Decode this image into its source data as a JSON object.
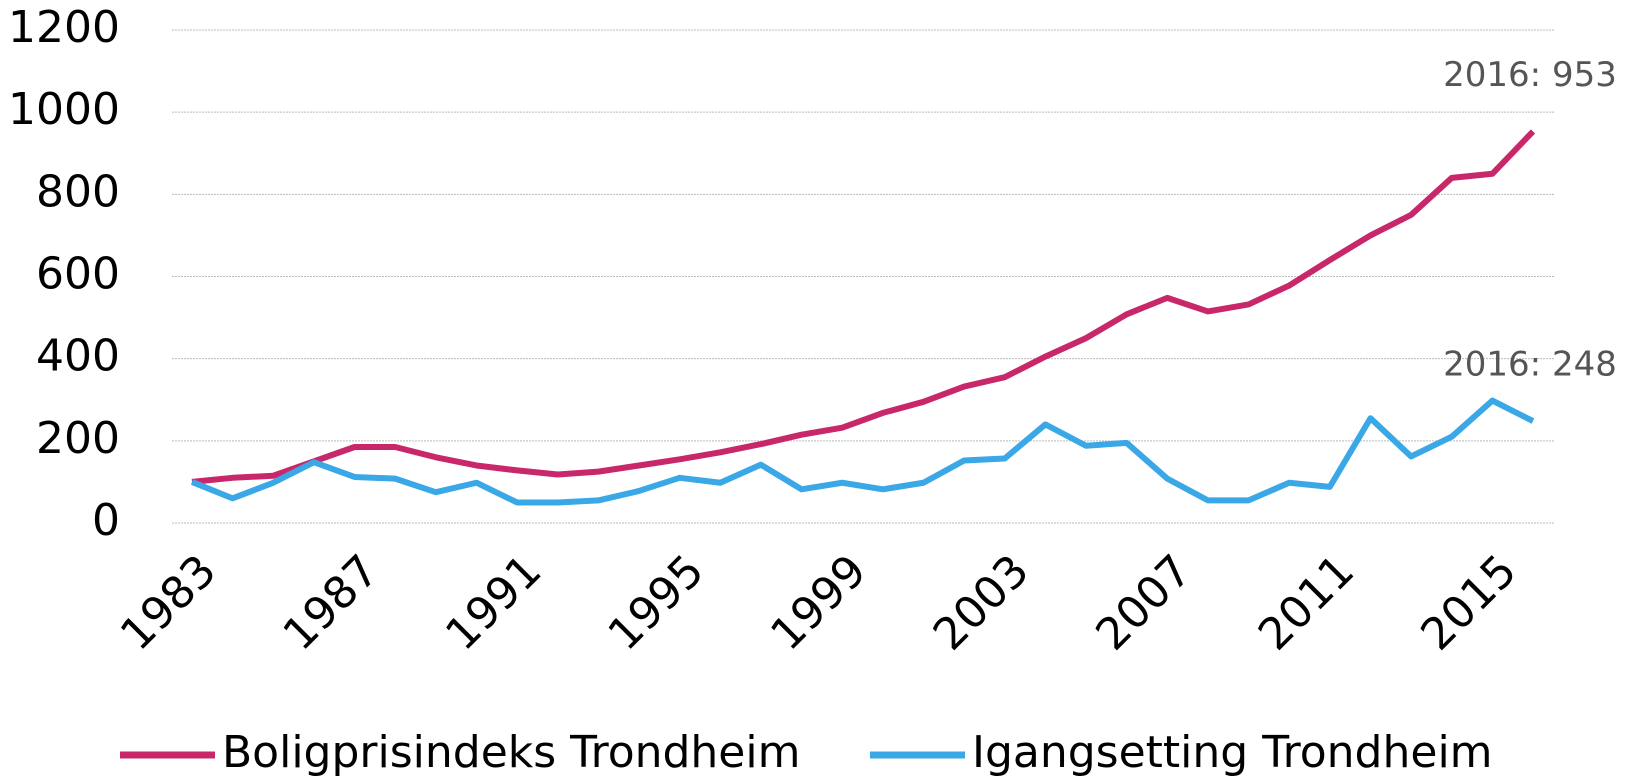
{
  "chart_data": {
    "type": "line",
    "x": [
      1983,
      1984,
      1985,
      1986,
      1987,
      1988,
      1989,
      1990,
      1991,
      1992,
      1993,
      1994,
      1995,
      1996,
      1997,
      1998,
      1999,
      2000,
      2001,
      2002,
      2003,
      2004,
      2005,
      2006,
      2007,
      2008,
      2009,
      2010,
      2011,
      2012,
      2013,
      2014,
      2015,
      2016
    ],
    "xlim": [
      1983,
      2016
    ],
    "xticks": [
      1983,
      1987,
      1991,
      1995,
      1999,
      2003,
      2007,
      2011,
      2015
    ],
    "ylim": [
      0,
      1200
    ],
    "yticks": [
      0,
      200,
      400,
      600,
      800,
      1000,
      1200
    ],
    "grid": true,
    "legend": "bottom",
    "series": [
      {
        "name": "Boligprisindeks Trondheim",
        "color": "#c8286a",
        "values": [
          100,
          110,
          115,
          150,
          185,
          185,
          160,
          140,
          128,
          118,
          125,
          140,
          155,
          172,
          192,
          215,
          232,
          268,
          295,
          332,
          355,
          405,
          450,
          508,
          548,
          515,
          532,
          578,
          640,
          700,
          750,
          840,
          850,
          953
        ]
      },
      {
        "name": "Igangsetting Trondheim",
        "color": "#3aa8e6",
        "values": [
          100,
          60,
          98,
          148,
          112,
          108,
          75,
          98,
          50,
          50,
          55,
          78,
          110,
          98,
          142,
          82,
          98,
          82,
          98,
          152,
          157,
          240,
          188,
          195,
          108,
          55,
          55,
          98,
          88,
          255,
          162,
          210,
          298,
          248
        ]
      }
    ],
    "annotations": [
      "2016: 953",
      "2016: 248"
    ]
  }
}
